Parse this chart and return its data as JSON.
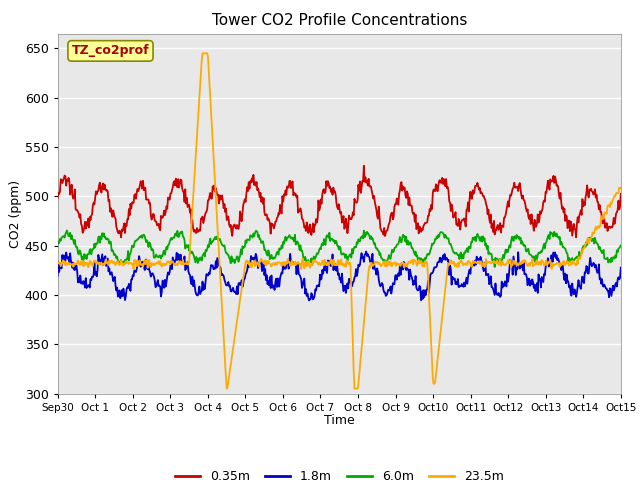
{
  "title": "Tower CO2 Profile Concentrations",
  "xlabel": "Time",
  "ylabel": "CO2 (ppm)",
  "ylim": [
    300,
    665
  ],
  "yticks": [
    300,
    350,
    400,
    450,
    500,
    550,
    600,
    650
  ],
  "legend_label": "TZ_co2prof",
  "colors": {
    "red": "#cc0000",
    "blue": "#0000cc",
    "green": "#00aa00",
    "orange": "#ffaa00"
  },
  "xtick_labels": [
    "Sep 30",
    "Oct 1",
    "Oct 2",
    "Oct 3",
    "Oct 4",
    "Oct 5",
    "Oct 6",
    "Oct 7",
    "Oct 8",
    "Oct 9",
    "Oct 10",
    "Oct 11",
    "Oct 12",
    "Oct 13",
    "Oct 14",
    "Oct 15"
  ],
  "n_days": 15,
  "pts_per_day": 48
}
